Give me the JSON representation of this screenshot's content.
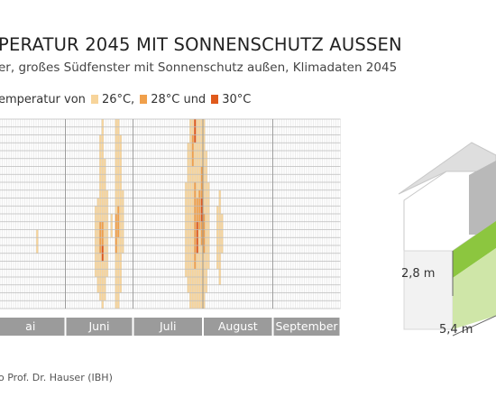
{
  "title": "PERATUR 2045 MIT SONNENSCHUTZ AUSSEN",
  "subtitle": "er, großes Südfenster mit Sonnenschutz außen, Klimadaten 2045",
  "legend": {
    "prefix": "emperatur von",
    "items": [
      {
        "label": "26°C,",
        "color": "#f7d49a"
      },
      {
        "label": "28°C und",
        "color": "#f0a04b"
      },
      {
        "label": "30°C",
        "color": "#e05a1c"
      }
    ]
  },
  "source": "o Prof. Dr. Hauser (IBH)",
  "house": {
    "height_label": "2,8 m",
    "width_label": "5,4 m"
  },
  "chart_data": {
    "type": "heatmap",
    "x_axis": "days (May – September)",
    "y_axis": "hour of day",
    "rows": 24,
    "days_per_month": [
      31,
      30,
      31,
      31,
      30
    ],
    "months": [
      "ai",
      "Juni",
      "Juli",
      "August",
      "September"
    ],
    "levels": {
      "26": "#f7d49a",
      "28": "#f0a04b",
      "30": "#e05a1c"
    },
    "cells": [
      {
        "day": 18,
        "from": 14,
        "to": 16,
        "level": 26
      },
      {
        "day": 44,
        "from": 11,
        "to": 19,
        "level": 26
      },
      {
        "day": 45,
        "from": 10,
        "to": 21,
        "level": 26
      },
      {
        "day": 46,
        "from": 2,
        "to": 22,
        "level": 26
      },
      {
        "day": 47,
        "from": 0,
        "to": 23,
        "level": 26
      },
      {
        "day": 48,
        "from": 5,
        "to": 22,
        "level": 26
      },
      {
        "day": 49,
        "from": 9,
        "to": 19,
        "level": 26
      },
      {
        "day": 46,
        "from": 13,
        "to": 16,
        "level": 28
      },
      {
        "day": 47,
        "from": 13,
        "to": 16,
        "level": 28
      },
      {
        "day": 47,
        "from": 16,
        "to": 17,
        "level": 30
      },
      {
        "day": 51,
        "from": 12,
        "to": 14,
        "level": 26
      },
      {
        "day": 53,
        "from": 0,
        "to": 23,
        "level": 26
      },
      {
        "day": 54,
        "from": 0,
        "to": 23,
        "level": 26
      },
      {
        "day": 55,
        "from": 2,
        "to": 21,
        "level": 26
      },
      {
        "day": 56,
        "from": 9,
        "to": 16,
        "level": 26
      },
      {
        "day": 53,
        "from": 12,
        "to": 16,
        "level": 28
      },
      {
        "day": 54,
        "from": 11,
        "to": 14,
        "level": 28
      },
      {
        "day": 84,
        "from": 8,
        "to": 19,
        "level": 26
      },
      {
        "day": 85,
        "from": 3,
        "to": 21,
        "level": 26
      },
      {
        "day": 86,
        "from": 0,
        "to": 23,
        "level": 26
      },
      {
        "day": 87,
        "from": 0,
        "to": 23,
        "level": 26
      },
      {
        "day": 88,
        "from": 0,
        "to": 23,
        "level": 26
      },
      {
        "day": 89,
        "from": 0,
        "to": 23,
        "level": 26
      },
      {
        "day": 90,
        "from": 0,
        "to": 23,
        "level": 26
      },
      {
        "day": 91,
        "from": 0,
        "to": 23,
        "level": 26
      },
      {
        "day": 92,
        "from": 0,
        "to": 23,
        "level": 26
      },
      {
        "day": 93,
        "from": 4,
        "to": 21,
        "level": 26
      },
      {
        "day": 94,
        "from": 8,
        "to": 18,
        "level": 26
      },
      {
        "day": 87,
        "from": 2,
        "to": 5,
        "level": 28
      },
      {
        "day": 88,
        "from": 8,
        "to": 18,
        "level": 28
      },
      {
        "day": 89,
        "from": 10,
        "to": 16,
        "level": 28
      },
      {
        "day": 90,
        "from": 9,
        "to": 13,
        "level": 28
      },
      {
        "day": 91,
        "from": 6,
        "to": 15,
        "level": 28
      },
      {
        "day": 92,
        "from": 12,
        "to": 16,
        "level": 28
      },
      {
        "day": 88,
        "from": 0,
        "to": 2,
        "level": 30
      },
      {
        "day": 89,
        "from": 13,
        "to": 16,
        "level": 30
      },
      {
        "day": 91,
        "from": 10,
        "to": 12,
        "level": 30
      },
      {
        "day": 98,
        "from": 11,
        "to": 18,
        "level": 26
      },
      {
        "day": 99,
        "from": 9,
        "to": 20,
        "level": 26
      },
      {
        "day": 100,
        "from": 12,
        "to": 16,
        "level": 26
      }
    ]
  }
}
